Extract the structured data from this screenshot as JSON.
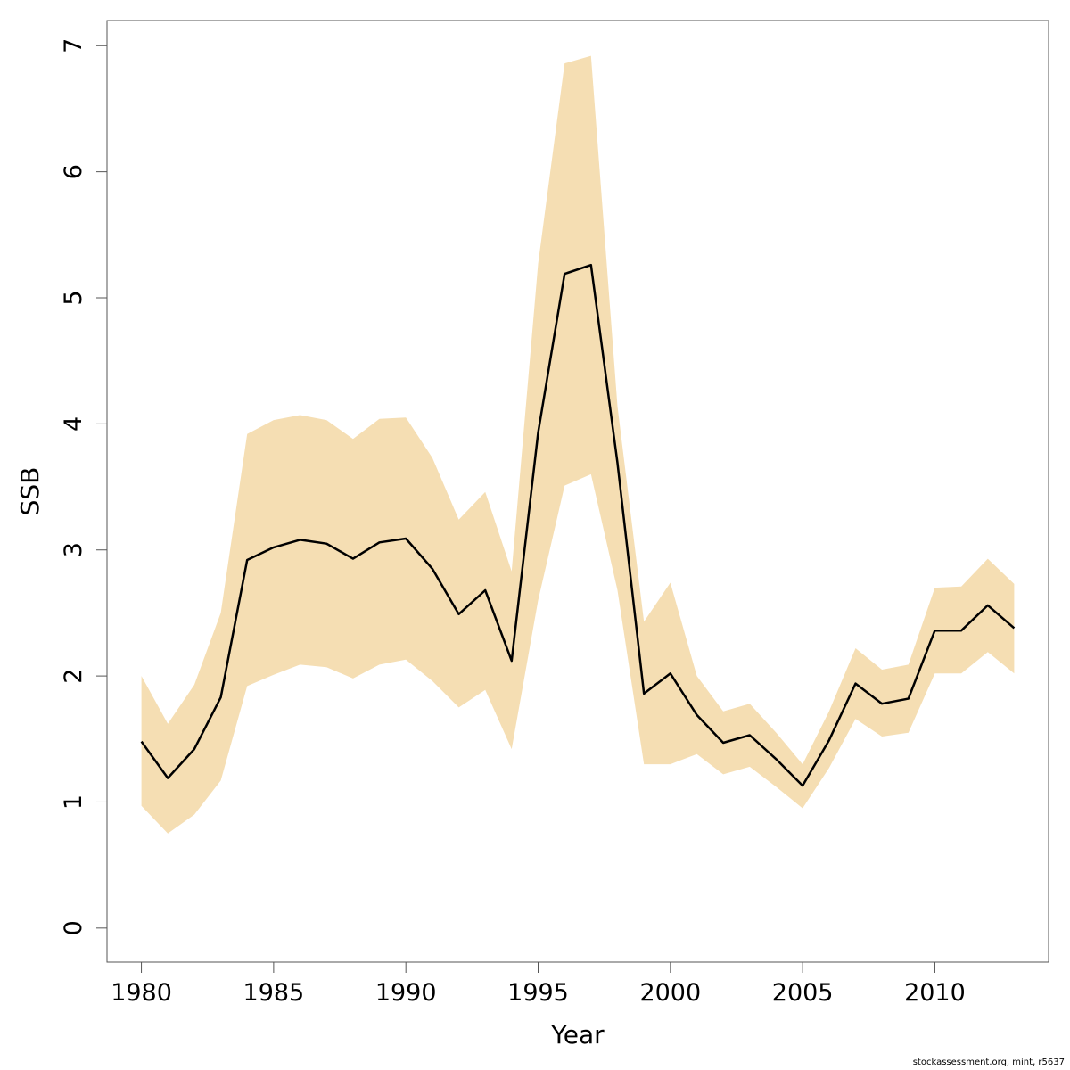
{
  "chart_data": {
    "type": "area",
    "title": "",
    "xlabel": "Year",
    "ylabel": "SSB",
    "xlim": [
      1978.7,
      2014.3
    ],
    "ylim": [
      -0.27,
      7.2
    ],
    "x_ticks": [
      1980,
      1985,
      1990,
      1995,
      2000,
      2005,
      2010
    ],
    "y_ticks": [
      0,
      1,
      2,
      3,
      4,
      5,
      6,
      7
    ],
    "grid": false,
    "legend": "none",
    "band_color": "#f5deb3",
    "line_color": "#000000",
    "x": [
      1980,
      1981,
      1982,
      1983,
      1984,
      1985,
      1986,
      1987,
      1988,
      1989,
      1990,
      1991,
      1992,
      1993,
      1994,
      1995,
      1996,
      1997,
      1998,
      1999,
      2000,
      2001,
      2002,
      2003,
      2004,
      2005,
      2006,
      2007,
      2008,
      2009,
      2010,
      2011,
      2012,
      2013
    ],
    "series": [
      {
        "values": [
          1.48,
          1.19,
          1.42,
          1.83,
          2.92,
          3.02,
          3.08,
          3.05,
          2.93,
          3.06,
          3.09,
          2.85,
          2.49,
          2.68,
          2.12,
          3.93,
          5.19,
          5.26,
          3.69,
          1.86,
          2.02,
          1.69,
          1.47,
          1.53,
          1.34,
          1.13,
          1.49,
          1.94,
          1.78,
          1.82,
          2.36,
          2.36,
          2.56,
          2.38
        ]
      }
    ],
    "band": {
      "lower": [
        0.97,
        0.75,
        0.9,
        1.17,
        1.92,
        2.01,
        2.09,
        2.07,
        1.98,
        2.09,
        2.13,
        1.96,
        1.75,
        1.89,
        1.42,
        2.6,
        3.51,
        3.6,
        2.68,
        1.3,
        1.3,
        1.38,
        1.22,
        1.28,
        1.12,
        0.95,
        1.27,
        1.66,
        1.52,
        1.55,
        2.02,
        2.02,
        2.19,
        2.02
      ],
      "upper": [
        2.0,
        1.62,
        1.93,
        2.5,
        3.92,
        4.03,
        4.07,
        4.03,
        3.88,
        4.04,
        4.05,
        3.73,
        3.24,
        3.46,
        2.83,
        5.27,
        6.86,
        6.92,
        4.14,
        2.43,
        2.74,
        2.0,
        1.72,
        1.78,
        1.55,
        1.3,
        1.72,
        2.22,
        2.05,
        2.09,
        2.7,
        2.71,
        2.93,
        2.73
      ]
    }
  },
  "footnote": "stockassessment.org, mint, r5637"
}
